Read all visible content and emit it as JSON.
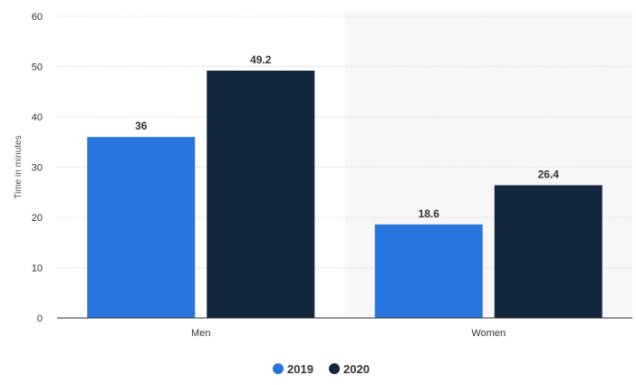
{
  "chart_data": {
    "type": "bar",
    "categories": [
      "Men",
      "Women"
    ],
    "series": [
      {
        "name": "2019",
        "values": [
          36,
          18.6
        ],
        "color": "#2876dd"
      },
      {
        "name": "2020",
        "values": [
          49.2,
          26.4
        ],
        "color": "#13273f"
      }
    ],
    "ylabel": "Time in minutes",
    "xlabel": "",
    "ylim": [
      0,
      60
    ],
    "yticks": [
      0,
      10,
      20,
      30,
      40,
      50,
      60
    ],
    "data_labels": [
      "36",
      "18.6",
      "49.2",
      "26.4"
    ],
    "grid": true,
    "legend": "bottom-center",
    "highlighted_category": "Women",
    "highlight_color": "#f7f7f7"
  }
}
